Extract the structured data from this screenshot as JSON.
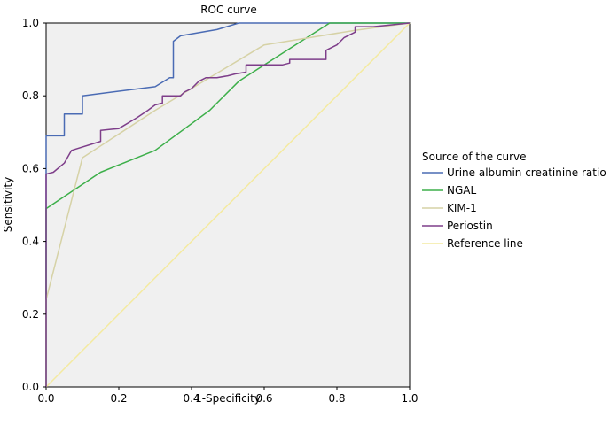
{
  "chart_data": {
    "type": "line",
    "title": "ROC curve",
    "xlabel": "1-Specificity",
    "ylabel": "Sensitivity",
    "xlim": [
      0,
      1
    ],
    "ylim": [
      0,
      1
    ],
    "x_ticks": [
      "0.0",
      "0.2",
      "0.4",
      "0.6",
      "0.8",
      "1.0"
    ],
    "y_ticks": [
      "0.0",
      "0.2",
      "0.4",
      "0.6",
      "0.8",
      "1.0"
    ],
    "legend_title": "Source of the curve",
    "legend_position": "right",
    "plot_background": "#f0f0f0",
    "series": [
      {
        "name": "Urine albumin creatinine ratio",
        "color": "#4a6bb4",
        "x": [
          0,
          0,
          0.05,
          0.05,
          0.1,
          0.1,
          0.3,
          0.34,
          0.35,
          0.35,
          0.37,
          0.47,
          0.53,
          0.6,
          0.8,
          1.0
        ],
        "y": [
          0,
          0.69,
          0.69,
          0.75,
          0.75,
          0.8,
          0.825,
          0.85,
          0.85,
          0.95,
          0.965,
          0.982,
          1.0,
          1.0,
          1.0,
          1.0
        ]
      },
      {
        "name": "NGAL",
        "color": "#3daf4a",
        "x": [
          0,
          0,
          0.15,
          0.3,
          0.45,
          0.53,
          0.78,
          1.0
        ],
        "y": [
          0,
          0.49,
          0.59,
          0.65,
          0.76,
          0.84,
          1.0,
          1.0
        ]
      },
      {
        "name": "KIM-1",
        "color": "#d6d2a6",
        "x": [
          0,
          0,
          0.1,
          0.3,
          0.6,
          0.85,
          1.0
        ],
        "y": [
          0,
          0.24,
          0.63,
          0.76,
          0.94,
          0.98,
          1.0
        ]
      },
      {
        "name": "Periostin",
        "color": "#7e3e8a",
        "x": [
          0,
          0,
          0.02,
          0.05,
          0.07,
          0.15,
          0.15,
          0.2,
          0.25,
          0.28,
          0.3,
          0.32,
          0.32,
          0.36,
          0.37,
          0.38,
          0.4,
          0.42,
          0.44,
          0.47,
          0.5,
          0.52,
          0.55,
          0.55,
          0.65,
          0.67,
          0.67,
          0.77,
          0.77,
          0.8,
          0.82,
          0.85,
          0.85,
          0.9,
          1.0
        ],
        "y": [
          0,
          0.585,
          0.59,
          0.615,
          0.65,
          0.675,
          0.705,
          0.71,
          0.74,
          0.76,
          0.775,
          0.78,
          0.8,
          0.8,
          0.8,
          0.81,
          0.82,
          0.84,
          0.85,
          0.85,
          0.855,
          0.86,
          0.865,
          0.885,
          0.885,
          0.89,
          0.9,
          0.9,
          0.925,
          0.94,
          0.96,
          0.975,
          0.99,
          0.99,
          1.0
        ]
      },
      {
        "name": "Reference line",
        "color": "#f4eaa0",
        "x": [
          0,
          1
        ],
        "y": [
          0,
          1
        ]
      }
    ]
  }
}
